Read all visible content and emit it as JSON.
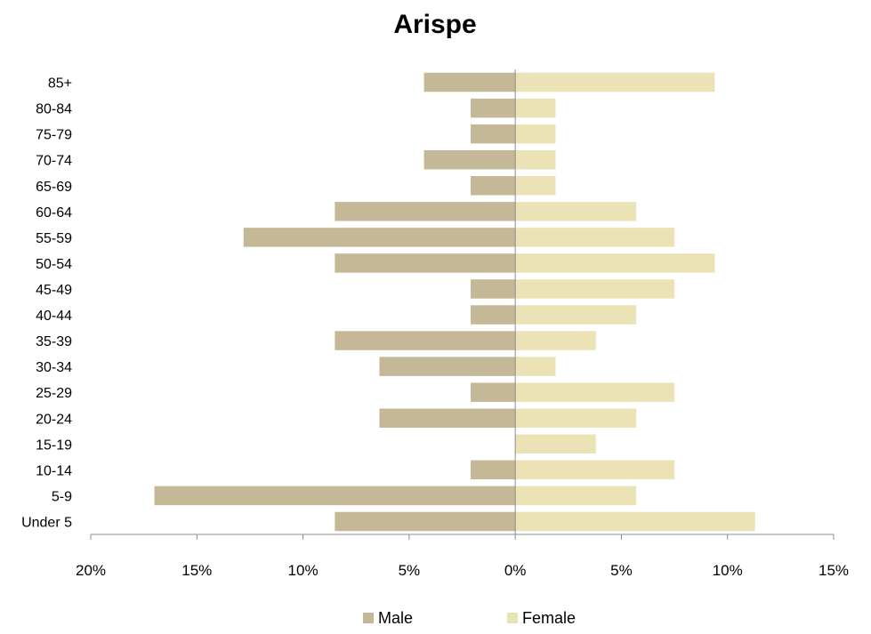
{
  "chart_data": {
    "type": "bar",
    "orientation": "horizontal",
    "title": "Arispe",
    "categories": [
      "Under 5",
      "5-9",
      "10-14",
      "15-19",
      "20-24",
      "25-29",
      "30-34",
      "35-39",
      "40-44",
      "45-49",
      "50-54",
      "55-59",
      "60-64",
      "65-69",
      "70-74",
      "75-79",
      "80-84",
      "85+"
    ],
    "series": [
      {
        "name": "Male",
        "color": "#c4b896",
        "values": [
          8.5,
          17.0,
          2.1,
          0.0,
          6.4,
          2.1,
          6.4,
          8.5,
          2.1,
          2.1,
          8.5,
          12.8,
          8.5,
          2.1,
          4.3,
          2.1,
          2.1,
          4.3
        ]
      },
      {
        "name": "Female",
        "color": "#ebe3b6",
        "values": [
          11.3,
          5.7,
          7.5,
          3.8,
          5.7,
          7.5,
          1.9,
          3.8,
          5.7,
          7.5,
          9.4,
          7.5,
          5.7,
          1.9,
          1.9,
          1.9,
          1.9,
          9.4
        ]
      }
    ],
    "xlim": [
      -20,
      15
    ],
    "xticks": [
      -20,
      -15,
      -10,
      -5,
      0,
      5,
      10,
      15
    ],
    "xtick_labels": [
      "20%",
      "15%",
      "10%",
      "5%",
      "0%",
      "5%",
      "10%",
      "15%"
    ],
    "legend_position": "bottom",
    "grid": false
  }
}
